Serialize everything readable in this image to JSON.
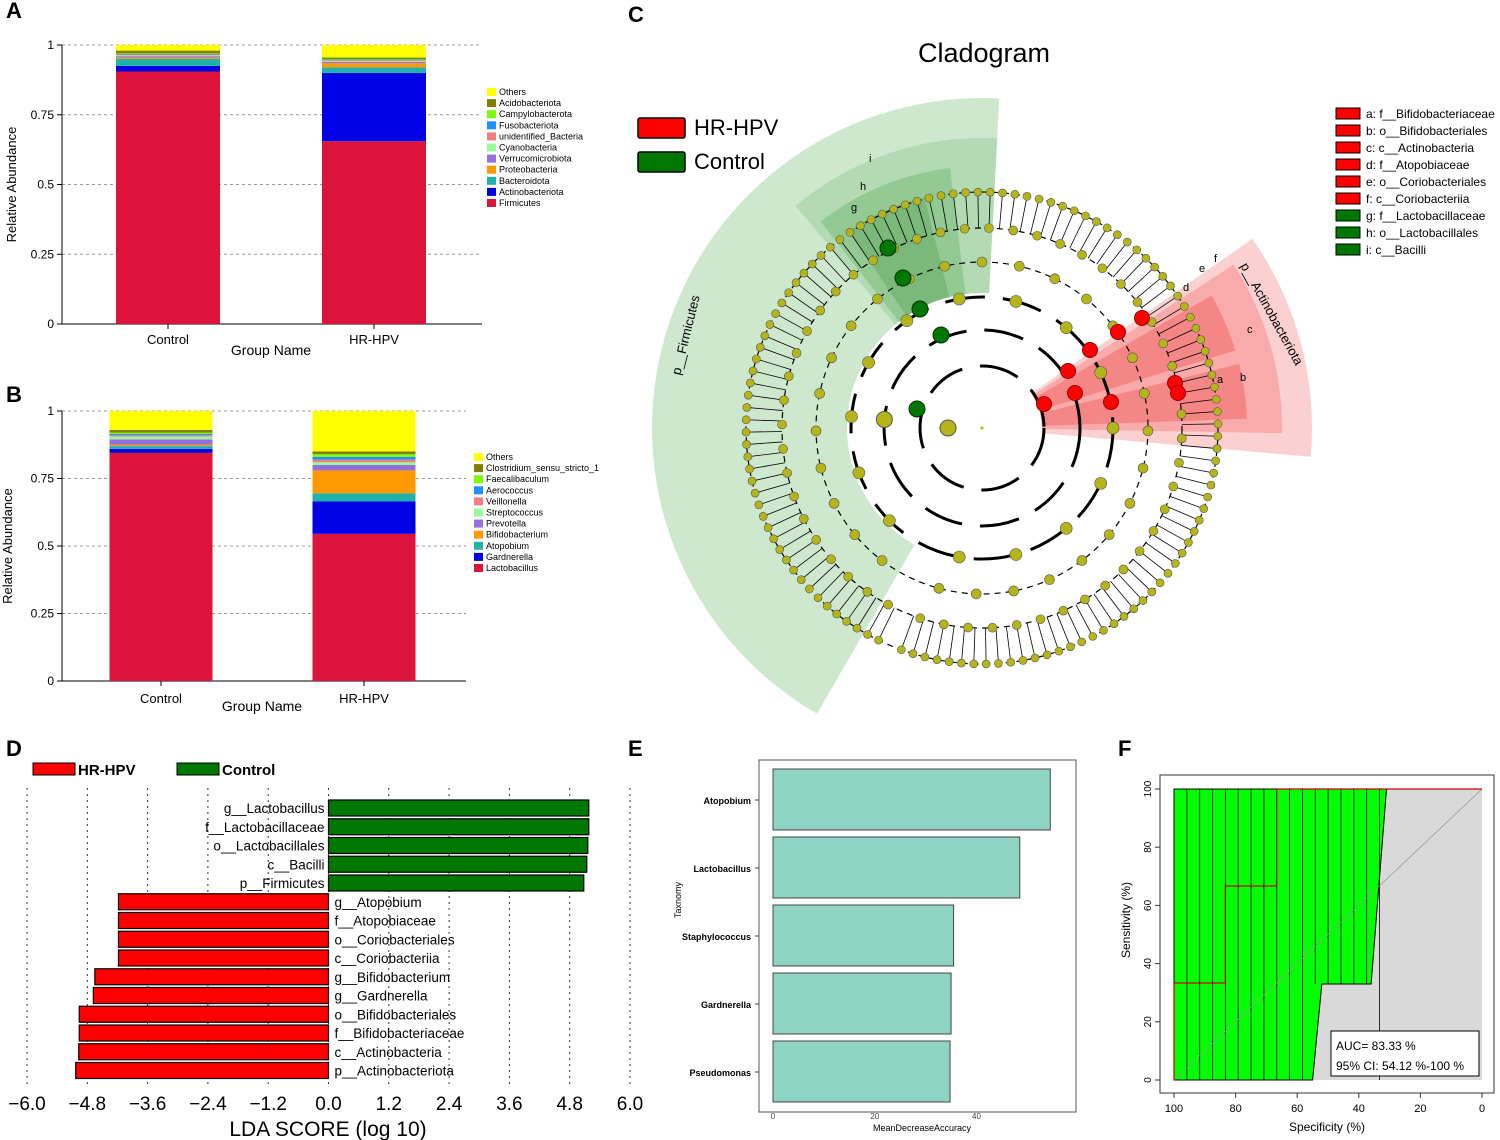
{
  "panels": {
    "A": "A",
    "B": "B",
    "C": "C",
    "D": "D",
    "E": "E",
    "F": "F"
  },
  "chart_data": [
    {
      "panel": "A",
      "type": "bar",
      "stacked": true,
      "xlabel": "Group Name",
      "ylabel": "Relative Abundance",
      "categories": [
        "Control",
        "HR-HPV"
      ],
      "yticks": [
        "0",
        "0.25",
        "0.5",
        "0.75",
        "1"
      ],
      "ylim": [
        0,
        1
      ],
      "legend_order_top_to_bottom": [
        "Others",
        "Acidobacteriota",
        "Campylobacterota",
        "Fusobacteriota",
        "unidentified_Bacteria",
        "Cyanobacteria",
        "Verrucomicrobiota",
        "Proteobacteria",
        "Bacteroidota",
        "Actinobacteriota",
        "Firmicutes"
      ],
      "series": [
        {
          "name": "Firmicutes",
          "color": "#dc143c",
          "values": [
            0.905,
            0.655
          ]
        },
        {
          "name": "Actinobacteriota",
          "color": "#0000e6",
          "values": [
            0.02,
            0.245
          ]
        },
        {
          "name": "Bacteroidota",
          "color": "#20b2aa",
          "values": [
            0.025,
            0.02
          ]
        },
        {
          "name": "Proteobacteria",
          "color": "#ff9900",
          "values": [
            0.005,
            0.015
          ]
        },
        {
          "name": "Verrucomicrobiota",
          "color": "#9370db",
          "values": [
            0.005,
            0.005
          ]
        },
        {
          "name": "Cyanobacteria",
          "color": "#98fb98",
          "values": [
            0.003,
            0.003
          ]
        },
        {
          "name": "unidentified_Bacteria",
          "color": "#f08080",
          "values": [
            0.003,
            0.003
          ]
        },
        {
          "name": "Fusobacteriota",
          "color": "#1e90ff",
          "values": [
            0.002,
            0.002
          ]
        },
        {
          "name": "Campylobacterota",
          "color": "#7cfc00",
          "values": [
            0.002,
            0.002
          ]
        },
        {
          "name": "Acidobacteriota",
          "color": "#808000",
          "values": [
            0.01,
            0.005
          ]
        },
        {
          "name": "Others",
          "color": "#ffff00",
          "values": [
            0.02,
            0.045
          ]
        }
      ]
    },
    {
      "panel": "B",
      "type": "bar",
      "stacked": true,
      "xlabel": "Group Name",
      "ylabel": "Relative Abundance",
      "categories": [
        "Control",
        "HR-HPV"
      ],
      "yticks": [
        "0",
        "0.25",
        "0.5",
        "0.75",
        "1"
      ],
      "ylim": [
        0,
        1
      ],
      "legend_order_top_to_bottom": [
        "Others",
        "Clostridium_sensu_stricto_1",
        "Faecalibaculum",
        "Aerococcus",
        "Veillonella",
        "Streptococcus",
        "Prevotella",
        "Bifidobacterium",
        "Atopobium",
        "Gardnerella",
        "Lactobacillus"
      ],
      "series": [
        {
          "name": "Lactobacillus",
          "color": "#dc143c",
          "values": [
            0.845,
            0.545
          ]
        },
        {
          "name": "Gardnerella",
          "color": "#0000e6",
          "values": [
            0.015,
            0.12
          ]
        },
        {
          "name": "Atopobium",
          "color": "#20b2aa",
          "values": [
            0.01,
            0.03
          ]
        },
        {
          "name": "Bifidobacterium",
          "color": "#ff9900",
          "values": [
            0.005,
            0.085
          ]
        },
        {
          "name": "Prevotella",
          "color": "#9370db",
          "values": [
            0.02,
            0.02
          ]
        },
        {
          "name": "Streptococcus",
          "color": "#98fb98",
          "values": [
            0.01,
            0.01
          ]
        },
        {
          "name": "Veillonella",
          "color": "#f08080",
          "values": [
            0.005,
            0.01
          ]
        },
        {
          "name": "Aerococcus",
          "color": "#1e90ff",
          "values": [
            0.005,
            0.01
          ]
        },
        {
          "name": "Faecalibaculum",
          "color": "#7cfc00",
          "values": [
            0.005,
            0.01
          ]
        },
        {
          "name": "Clostridium_sensu_stricto_1",
          "color": "#808000",
          "values": [
            0.01,
            0.01
          ]
        },
        {
          "name": "Others",
          "color": "#ffff00",
          "values": [
            0.07,
            0.15
          ]
        }
      ]
    },
    {
      "panel": "D",
      "type": "bar",
      "orientation": "horizontal",
      "xlabel": "LDA SCORE (log 10)",
      "xlim": [
        -6.0,
        6.0
      ],
      "xticks": [
        "−6.0",
        "−4.8",
        "−3.6",
        "−2.4",
        "−1.2",
        "0.0",
        "1.2",
        "2.4",
        "3.6",
        "4.8",
        "6.0"
      ],
      "legend": [
        {
          "name": "HR-HPV",
          "color": "#ff0000"
        },
        {
          "name": "Control",
          "color": "#007700"
        }
      ],
      "bars": [
        {
          "label": "g__Lactobacillus",
          "value": 5.18,
          "group": "Control"
        },
        {
          "label": "f__Lactobacillaceae",
          "value": 5.18,
          "group": "Control"
        },
        {
          "label": "o__Lactobacillales",
          "value": 5.16,
          "group": "Control"
        },
        {
          "label": "c__Bacilli",
          "value": 5.14,
          "group": "Control"
        },
        {
          "label": "p__Firmicutes",
          "value": 5.08,
          "group": "Control"
        },
        {
          "label": "g__Atopobium",
          "value": -4.18,
          "group": "HR-HPV"
        },
        {
          "label": "f__Atopobiaceae",
          "value": -4.18,
          "group": "HR-HPV"
        },
        {
          "label": "o__Coriobacteriales",
          "value": -4.18,
          "group": "HR-HPV"
        },
        {
          "label": "c__Coriobacteriia",
          "value": -4.18,
          "group": "HR-HPV"
        },
        {
          "label": "g__Bifidobacterium",
          "value": -4.65,
          "group": "HR-HPV"
        },
        {
          "label": "g__Gardnerella",
          "value": -4.68,
          "group": "HR-HPV"
        },
        {
          "label": "o__Bifidobacteriales",
          "value": -4.96,
          "group": "HR-HPV"
        },
        {
          "label": "f__Bifidobacteriaceae",
          "value": -4.96,
          "group": "HR-HPV"
        },
        {
          "label": "c__Actinobacteria",
          "value": -4.97,
          "group": "HR-HPV"
        },
        {
          "label": "p__Actinobacteriota",
          "value": -5.03,
          "group": "HR-HPV"
        }
      ]
    },
    {
      "panel": "E",
      "type": "bar",
      "orientation": "horizontal",
      "xlabel": "MeanDecreaseAccuracy",
      "ylabel": "Taxnomy",
      "xlim": [
        0,
        57
      ],
      "xticks": [
        "0",
        "20",
        "40"
      ],
      "color": "#8fd3c3",
      "categories": [
        "Atopobium",
        "Lactobacillus",
        "Staphylococcus",
        "Gardnerella",
        "Pseudomonas"
      ],
      "values": [
        54.5,
        48.5,
        35.5,
        35.0,
        34.8
      ]
    },
    {
      "panel": "F",
      "type": "line",
      "subtype": "roc",
      "xlabel": "Specificity (%)",
      "ylabel": "Sensitivity (%)",
      "xlim": [
        100,
        0
      ],
      "ylim": [
        0,
        100
      ],
      "xticks": [
        "100",
        "80",
        "60",
        "40",
        "20",
        "0"
      ],
      "yticks": [
        "0",
        "20",
        "40",
        "60",
        "80",
        "100"
      ],
      "roc_points": [
        [
          100,
          0
        ],
        [
          100,
          33.33
        ],
        [
          83.33,
          33.33
        ],
        [
          83.33,
          66.67
        ],
        [
          66.67,
          66.67
        ],
        [
          66.67,
          100
        ],
        [
          0,
          100
        ]
      ],
      "ci_upper_specificity": [
        [
          100,
          100
        ],
        [
          31,
          100
        ]
      ],
      "ci_lower_specificity": [
        [
          100,
          0
        ],
        [
          55,
          0
        ],
        [
          52,
          33
        ],
        [
          36,
          33
        ],
        [
          31,
          100
        ]
      ],
      "auc_label": "AUC= 83.33 %",
      "ci_label": "95% CI: 54.12 %-100 %"
    }
  ],
  "cladogram": {
    "title": "Cladogram",
    "legend": [
      {
        "name": "HR-HPV",
        "color": "#ff0000"
      },
      {
        "name": "Control",
        "color": "#007700"
      }
    ],
    "sector_labels": [
      "p__Firmicutes",
      "p__Actinobacteriota"
    ],
    "clade_letters_green": [
      "i",
      "h",
      "g"
    ],
    "clade_letters_red": [
      "f",
      "e",
      "d",
      "c",
      "b",
      "a"
    ],
    "key": [
      {
        "label": "a: f__Bifidobacteriaceae",
        "color": "#ff0000"
      },
      {
        "label": "b: o__Bifidobacteriales",
        "color": "#ff0000"
      },
      {
        "label": "c: c__Actinobacteria",
        "color": "#ff0000"
      },
      {
        "label": "d: f__Atopobiaceae",
        "color": "#ff0000"
      },
      {
        "label": "e: o__Coriobacteriales",
        "color": "#ff0000"
      },
      {
        "label": "f: c__Coriobacteriia",
        "color": "#ff0000"
      },
      {
        "label": "g: f__Lactobacillaceae",
        "color": "#007700"
      },
      {
        "label": "h: o__Lactobacillales",
        "color": "#007700"
      },
      {
        "label": "i: c__Bacilli",
        "color": "#007700"
      }
    ]
  }
}
